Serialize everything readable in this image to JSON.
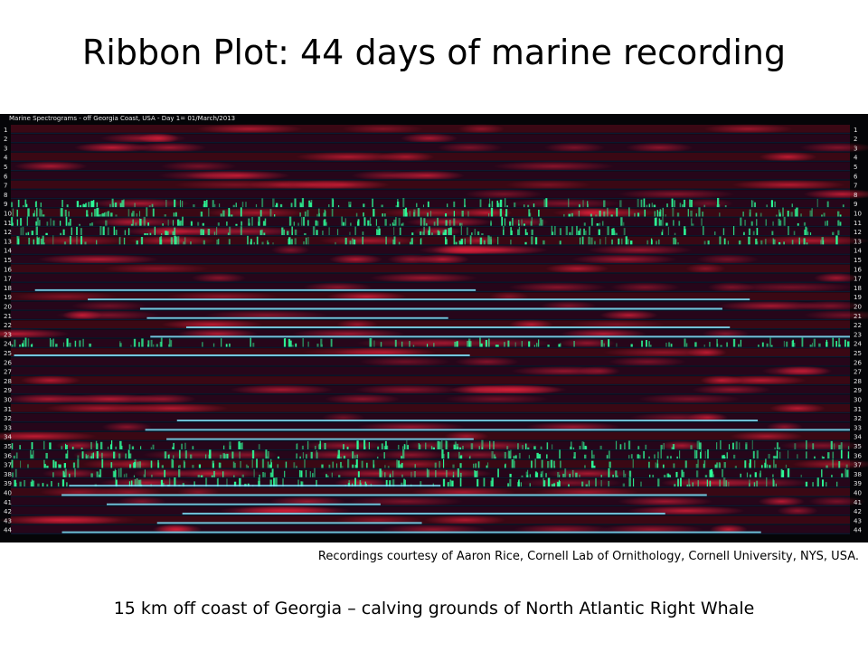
{
  "slide": {
    "title": "Ribbon Plot: 44 days of marine recording",
    "ribbon_header": "Marine Spectrograms - off Georgia Coast, USA - Day 1= 01/March/2013",
    "day_labels": [
      "1",
      "2",
      "3",
      "4",
      "5",
      "6",
      "7",
      "8",
      "9",
      "10",
      "11",
      "12",
      "13",
      "14",
      "15",
      "16",
      "17",
      "18",
      "19",
      "20",
      "21",
      "22",
      "23",
      "24",
      "25",
      "26",
      "27",
      "28",
      "29",
      "30",
      "31",
      "32",
      "33",
      "34",
      "35",
      "36",
      "37",
      "38",
      "39",
      "40",
      "41",
      "42",
      "43",
      "44"
    ],
    "credit": "Recordings courtesy of Aaron Rice, Cornell Lab of Ornithology, Cornell University, NYS, USA.",
    "caption": "15 km off coast of Georgia – calving grounds of North Atlantic Right Whale",
    "colors": {
      "background": "#050508",
      "red_energy": "#e0203a",
      "green_energy": "#2dff9a",
      "cyan_energy": "#7fe8ff",
      "label_text": "#e8e8e8"
    }
  }
}
